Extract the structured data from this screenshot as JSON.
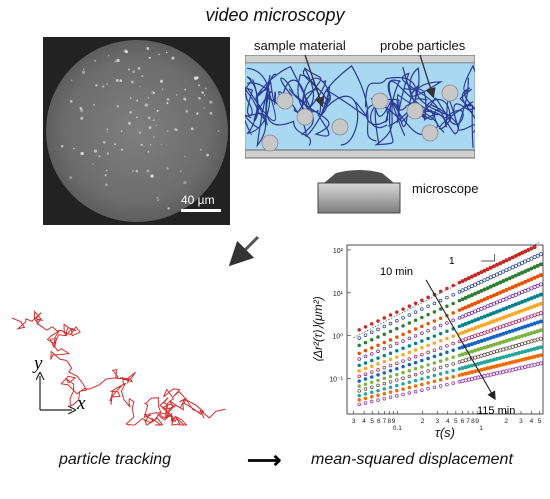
{
  "header": {
    "title": "video microscopy"
  },
  "micrograph": {
    "scale_bar_label": "40 µm"
  },
  "sample_cell": {
    "sample_material_label": "sample material",
    "probe_particles_label": "probe particles",
    "microscope_label": "microscope"
  },
  "trajectory": {
    "y_axis_label": "y",
    "x_axis_label": "x"
  },
  "chart_data": {
    "type": "scatter",
    "xlabel": "τ(s)",
    "ylabel": "⟨Δr²(τ)⟩(μm²)",
    "x_scale": "log",
    "y_scale": "log",
    "xlim": [
      0.025,
      5.5
    ],
    "ylim": [
      0.015,
      130
    ],
    "x_tick_labels": [
      "3",
      "4",
      "5",
      "6",
      "7",
      "8",
      "9",
      "0.1",
      "2",
      "3",
      "4",
      "5",
      "6",
      "7",
      "8",
      "9",
      "1",
      "2",
      "3",
      "4",
      "5"
    ],
    "y_tick_labels": [
      "10²",
      "10¹",
      "10⁰",
      "10⁻¹"
    ],
    "annotations": {
      "start_label": "10 min",
      "end_label": "115 min",
      "slope_label": "1"
    },
    "series": [
      {
        "color": "#c62828",
        "y_at_1s": 30,
        "slope": 0.92
      },
      {
        "color": "#1e3a8a",
        "y_at_1s": 18,
        "slope": 0.9
      },
      {
        "color": "#2e7d32",
        "y_at_1s": 11,
        "slope": 0.87
      },
      {
        "color": "#e65100",
        "y_at_1s": 6.5,
        "slope": 0.84
      },
      {
        "color": "#6a1b9a",
        "y_at_1s": 4.2,
        "slope": 0.8
      },
      {
        "color": "#00838f",
        "y_at_1s": 2.6,
        "slope": 0.76
      },
      {
        "color": "#f9a825",
        "y_at_1s": 1.7,
        "slope": 0.72
      },
      {
        "color": "#ad1457",
        "y_at_1s": 1.1,
        "slope": 0.68
      },
      {
        "color": "#1565c0",
        "y_at_1s": 0.75,
        "slope": 0.64
      },
      {
        "color": "#7cb342",
        "y_at_1s": 0.5,
        "slope": 0.6
      },
      {
        "color": "#5d4037",
        "y_at_1s": 0.34,
        "slope": 0.56
      },
      {
        "color": "#26a69a",
        "y_at_1s": 0.23,
        "slope": 0.52
      },
      {
        "color": "#ef6c00",
        "y_at_1s": 0.16,
        "slope": 0.48
      },
      {
        "color": "#8e24aa",
        "y_at_1s": 0.11,
        "slope": 0.44
      }
    ]
  },
  "footer": {
    "left_label": "particle tracking",
    "arrow": "⟶",
    "right_label": "mean-squared displacement"
  }
}
